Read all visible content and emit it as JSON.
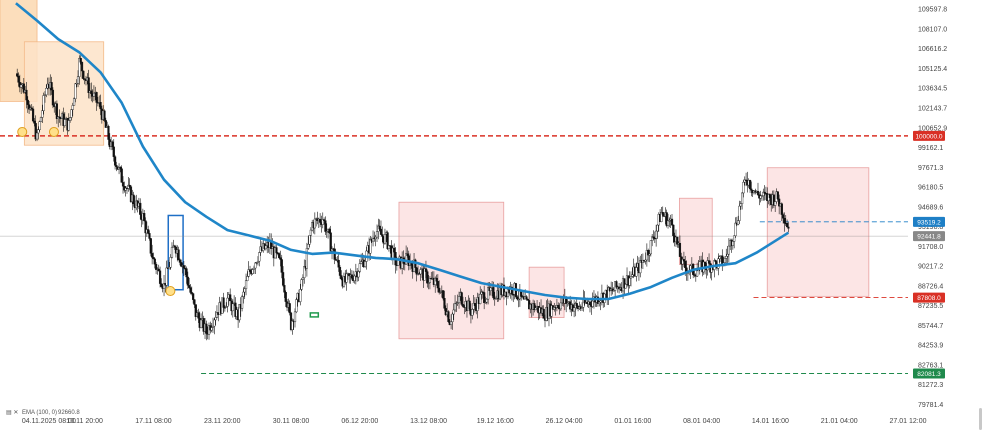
{
  "chart_data": {
    "type": "candlestick",
    "ema_label": "EMA (100, 0)",
    "ema_value": "92660.8",
    "y_ticks": [
      "109597.8",
      "108107.0",
      "106616.2",
      "105125.4",
      "103634.5",
      "102143.7",
      "100652.9",
      "99162.1",
      "97671.3",
      "96180.5",
      "94689.6",
      "93198.8",
      "91708.0",
      "90217.2",
      "88726.4",
      "87235.5",
      "85744.7",
      "84253.9",
      "82763.1",
      "81272.3",
      "79781.4"
    ],
    "y_tick_values": [
      109597.8,
      108107.0,
      106616.2,
      105125.4,
      103634.5,
      102143.7,
      100652.9,
      99162.1,
      97671.3,
      96180.5,
      94689.6,
      93198.8,
      91708.0,
      90217.2,
      88726.4,
      87235.5,
      85744.7,
      84253.9,
      82763.1,
      81272.3,
      79781.4
    ],
    "x_ticks": [
      "04.11.2025  08:00",
      "10.11  20:00",
      "17.11  08:00",
      "23.11  20:00",
      "30.11  08:00",
      "06.12  20:00",
      "13.12  08:00",
      "19.12  16:00",
      "26.12  04:00",
      "01.01  16:00",
      "08.01  04:00",
      "14.01  16:00",
      "21.01  04:00",
      "27.01  12:00"
    ],
    "x_tick_values": [
      0,
      6.5,
      13,
      19.5,
      26,
      32.5,
      39,
      45.3,
      51.8,
      58.3,
      64.8,
      71.3,
      77.8,
      84.3
    ],
    "price_labels": [
      {
        "text": "100000.0",
        "value": 100000.0,
        "color": "#d93025",
        "style": "dashed"
      },
      {
        "text": "93519.2",
        "value": 93519.2,
        "color": "#1e7fc6",
        "style": "dashed"
      },
      {
        "text": "92441.8",
        "value": 92441.8,
        "color": "#888888",
        "style": "solid"
      },
      {
        "text": "87808.0",
        "value": 87808.0,
        "color": "#d93025",
        "style": "dashed"
      },
      {
        "text": "82081.3",
        "value": 82081.3,
        "color": "#1f8a4c",
        "style": "dashed"
      }
    ],
    "price_path": [
      [
        0,
        104700
      ],
      [
        1,
        103200
      ],
      [
        2,
        99800
      ],
      [
        3,
        104200
      ],
      [
        4,
        101500
      ],
      [
        5,
        100800
      ],
      [
        6,
        105600
      ],
      [
        7,
        103400
      ],
      [
        8,
        102100
      ],
      [
        9,
        99100
      ],
      [
        10,
        96800
      ],
      [
        11,
        95300
      ],
      [
        12,
        93900
      ],
      [
        13,
        90600
      ],
      [
        14,
        88700
      ],
      [
        15,
        91900
      ],
      [
        16,
        89800
      ],
      [
        17,
        86600
      ],
      [
        18,
        85200
      ],
      [
        19,
        86800
      ],
      [
        20,
        87700
      ],
      [
        21,
        86400
      ],
      [
        22,
        89600
      ],
      [
        23,
        91200
      ],
      [
        24,
        91800
      ],
      [
        25,
        90300
      ],
      [
        26,
        85800
      ],
      [
        27,
        88700
      ],
      [
        28,
        93400
      ],
      [
        29,
        93800
      ],
      [
        30,
        91200
      ],
      [
        31,
        88900
      ],
      [
        32,
        89600
      ],
      [
        33,
        90800
      ],
      [
        34,
        92900
      ],
      [
        35,
        92200
      ],
      [
        36,
        90300
      ],
      [
        37,
        90700
      ],
      [
        38,
        89900
      ],
      [
        39,
        89200
      ],
      [
        40,
        88600
      ],
      [
        41,
        86100
      ],
      [
        42,
        87900
      ],
      [
        43,
        86800
      ],
      [
        44,
        87900
      ],
      [
        45,
        88100
      ],
      [
        46,
        88300
      ],
      [
        47,
        88500
      ],
      [
        48,
        87400
      ],
      [
        49,
        87100
      ],
      [
        50,
        86600
      ],
      [
        51,
        87300
      ],
      [
        52,
        87500
      ],
      [
        53,
        87000
      ],
      [
        54,
        87400
      ],
      [
        55,
        87800
      ],
      [
        56,
        88100
      ],
      [
        57,
        88700
      ],
      [
        58,
        89300
      ],
      [
        59,
        90200
      ],
      [
        60,
        91800
      ],
      [
        61,
        94200
      ],
      [
        62,
        93300
      ],
      [
        63,
        90200
      ],
      [
        64,
        89800
      ],
      [
        65,
        90200
      ],
      [
        66,
        90300
      ],
      [
        67,
        90600
      ],
      [
        68,
        93200
      ],
      [
        69,
        96900
      ],
      [
        70,
        95600
      ],
      [
        71,
        95300
      ],
      [
        72,
        95300
      ],
      [
        73,
        93100
      ]
    ],
    "ema_path": [
      [
        0,
        110000
      ],
      [
        2,
        108700
      ],
      [
        4,
        107300
      ],
      [
        6,
        106300
      ],
      [
        8,
        104800
      ],
      [
        10,
        102500
      ],
      [
        12,
        99200
      ],
      [
        14,
        96700
      ],
      [
        16,
        95000
      ],
      [
        18,
        93900
      ],
      [
        20,
        92900
      ],
      [
        22,
        92500
      ],
      [
        24,
        92100
      ],
      [
        26,
        91400
      ],
      [
        28,
        91100
      ],
      [
        30,
        91200
      ],
      [
        32,
        91000
      ],
      [
        34,
        90800
      ],
      [
        36,
        90700
      ],
      [
        38,
        90400
      ],
      [
        40,
        89900
      ],
      [
        42,
        89400
      ],
      [
        44,
        88900
      ],
      [
        46,
        88600
      ],
      [
        48,
        88300
      ],
      [
        50,
        88000
      ],
      [
        52,
        87800
      ],
      [
        54,
        87700
      ],
      [
        56,
        87700
      ],
      [
        58,
        88100
      ],
      [
        60,
        88600
      ],
      [
        62,
        89300
      ],
      [
        64,
        89900
      ],
      [
        66,
        90200
      ],
      [
        68,
        90400
      ],
      [
        70,
        91200
      ],
      [
        72,
        92200
      ],
      [
        73,
        92700
      ]
    ],
    "boxes": [
      {
        "x0": -1.5,
        "x1": 2.0,
        "y0": 102600,
        "y1": 111000,
        "fill": "#fbd8b0",
        "stroke": "#f3b988"
      },
      {
        "x0": 0.8,
        "x1": 8.3,
        "y0": 99300,
        "y1": 107100,
        "fill": "#fde3c8",
        "stroke": "#f3b988"
      },
      {
        "x0": 14.4,
        "x1": 15.8,
        "y0": 88400,
        "y1": 94000,
        "fill": "none",
        "stroke": "#1e6fc6"
      },
      {
        "x0": 36.2,
        "x1": 46.1,
        "y0": 84700,
        "y1": 95000,
        "fill": "#fbe0e0",
        "stroke": "#e8a0a0"
      },
      {
        "x0": 48.5,
        "x1": 51.8,
        "y0": 86300,
        "y1": 90100,
        "fill": "#fbe0e0",
        "stroke": "#e8a0a0"
      },
      {
        "x0": 62.7,
        "x1": 65.8,
        "y0": 90300,
        "y1": 95300,
        "fill": "#fbe0e0",
        "stroke": "#e8a0a0"
      },
      {
        "x0": 71.0,
        "x1": 80.6,
        "y0": 87900,
        "y1": 97600,
        "fill": "#fbe0e0",
        "stroke": "#e8a0a0"
      }
    ],
    "markers": [
      {
        "x": 0.6,
        "y": 100300,
        "kind": "circle"
      },
      {
        "x": 3.6,
        "y": 100300,
        "kind": "circle"
      },
      {
        "x": 14.6,
        "y": 88300,
        "kind": "circle"
      },
      {
        "x": 28.2,
        "y": 86500,
        "kind": "green-flag"
      }
    ],
    "ylim": [
      79781.4,
      110100
    ],
    "xlim": [
      -1.5,
      84.3
    ]
  }
}
